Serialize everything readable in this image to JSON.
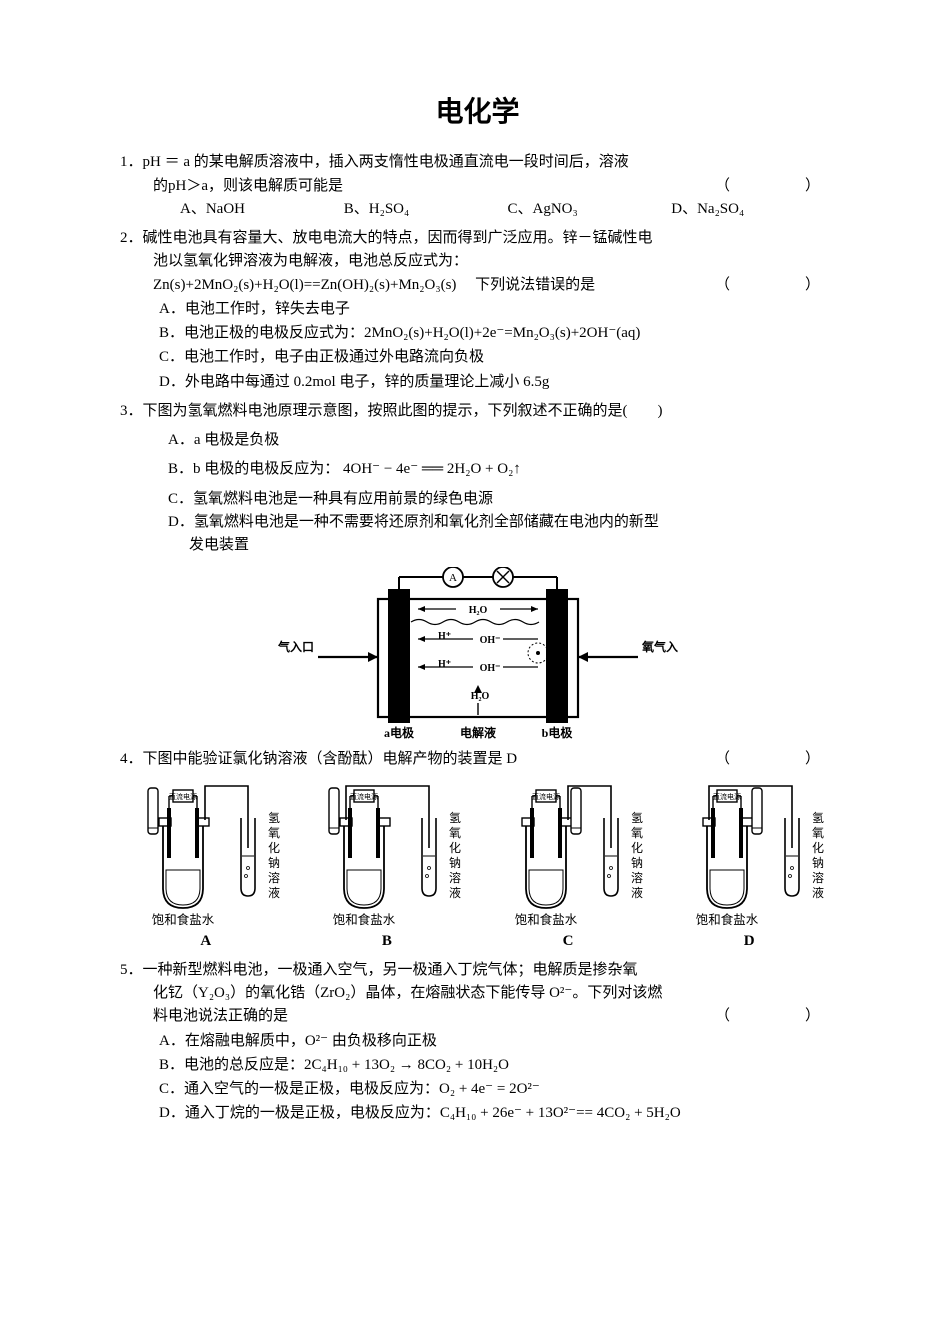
{
  "title": "电化学",
  "q1": {
    "num": "1．",
    "stem_a": "pH ＝ a 的某电解质溶液中，插入两支惰性电极通直流电一段时间后，溶液",
    "stem_b": "的pH＞a，则该电解质可能是",
    "paren": "（　　）",
    "opts": {
      "A": "A、NaOH",
      "B": "B、H₂SO₄",
      "C": "C、AgNO₃",
      "D": "D、Na₂SO₄"
    }
  },
  "q2": {
    "num": "2．",
    "line1": "碱性电池具有容量大、放电电流大的特点，因而得到广泛应用。锌－锰碱性电",
    "line2": "池以氢氧化钾溶液为电解液，电池总反应式为：",
    "eq": "Zn(s)+2MnO₂(s)+H₂O(l)==Zn(OH)₂(s)+Mn₂O₃(s)　 下列说法错误的是",
    "paren": "（　　）",
    "A": "A．电池工作时，锌失去电子",
    "B": "B．电池正极的电极反应式为：2MnO₂(s)+H₂O(l)+2e⁻=Mn₂O₃(s)+2OH⁻(aq)",
    "C": "C．电池工作时，电子由正极通过外电路流向负极",
    "D": "D．外电路中每通过 0.2mol 电子，锌的质量理论上减小 6.5g"
  },
  "q3": {
    "num": "3．",
    "stem": "下图为氢氧燃料电池原理示意图，按照此图的提示，下列叙述不正确的是(　　)",
    "A": "A．a 电极是负极",
    "B": "B．b 电极的电极反应为： 4OH⁻ − 4e⁻ ══ 2H₂O + O₂↑",
    "C": "C．氢氧燃料电池是一种具有应用前景的绿色电源",
    "D1": "D．氢氧燃料电池是一种不需要将还原剂和氧化剂全部储藏在电池内的新型",
    "D2": "发电装置",
    "fig": {
      "left_label": "氢气入口",
      "right_label": "氧气入口",
      "a_label": "a电极",
      "mid_label": "电解液",
      "b_label": "b电极",
      "top_h2o": "H₂O",
      "mid_oh1": "OH⁻",
      "mid_oh2": "OH⁻",
      "mid_h1": "H⁺",
      "mid_h2": "H⁺",
      "bot_h2o": "H₂O",
      "stroke": "#000000",
      "bg": "#ffffff"
    }
  },
  "q4": {
    "num": "4．",
    "stem": "下图中能验证氯化钠溶液（含酚酞）电解产物的装置是 D",
    "paren": "（　　）",
    "cell_labels": {
      "A": "A",
      "B": "B",
      "C": "C",
      "D": "D"
    },
    "caption_bottom": "饱和食盐水",
    "caption_right": "氢氧化钠溶液",
    "caption_power": "直流电源"
  },
  "q5": {
    "num": "5．",
    "l1": "一种新型燃料电池，一极通入空气，另一极通入丁烷气体；电解质是掺杂氧",
    "l2": "化钇（Y₂O₃）的氧化锆（ZrO₂）晶体，在熔融状态下能传导 O²⁻。下列对该燃",
    "l3": "料电池说法正确的是",
    "paren": "（　　）",
    "A": "A．在熔融电解质中，O²⁻ 由负极移向正极",
    "B": "B．电池的总反应是：2C₄H₁₀ + 13O₂ → 8CO₂ + 10H₂O",
    "C": "C．通入空气的一极是正极，电极反应为：O₂ + 4e⁻ = 2O²⁻",
    "D": "D．通入丁烷的一极是正极，电极反应为：C₄H₁₀ + 26e⁻ + 13O²⁻== 4CO₂ + 5H₂O"
  }
}
